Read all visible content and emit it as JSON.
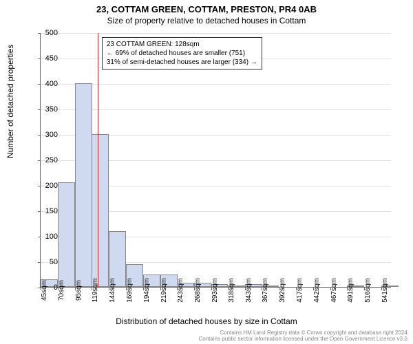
{
  "title": "23, COTTAM GREEN, COTTAM, PRESTON, PR4 0AB",
  "subtitle": "Size of property relative to detached houses in Cottam",
  "ylabel": "Number of detached properties",
  "xlabel": "Distribution of detached houses by size in Cottam",
  "chart": {
    "type": "histogram",
    "background_color": "#ffffff",
    "grid_color": "#e0e0e0",
    "axis_color": "#666666",
    "bar_fill": "#cfd9ef",
    "bar_border": "#888888",
    "marker_color": "#d62728",
    "ylim": [
      0,
      500
    ],
    "yticks": [
      0,
      50,
      100,
      150,
      200,
      250,
      300,
      350,
      400,
      450,
      500
    ],
    "xlim": [
      45,
      556
    ],
    "xticks": [
      45,
      70,
      95,
      119,
      144,
      169,
      194,
      219,
      243,
      268,
      293,
      318,
      343,
      367,
      392,
      417,
      442,
      467,
      491,
      516,
      541
    ],
    "xtick_suffix": "sqm",
    "bin_width": 25,
    "bars": [
      {
        "x": 45,
        "count": 15
      },
      {
        "x": 70,
        "count": 205
      },
      {
        "x": 95,
        "count": 400
      },
      {
        "x": 119,
        "count": 300
      },
      {
        "x": 144,
        "count": 110
      },
      {
        "x": 169,
        "count": 45
      },
      {
        "x": 194,
        "count": 25
      },
      {
        "x": 219,
        "count": 25
      },
      {
        "x": 243,
        "count": 8
      },
      {
        "x": 268,
        "count": 8
      },
      {
        "x": 293,
        "count": 6
      },
      {
        "x": 318,
        "count": 3
      },
      {
        "x": 343,
        "count": 5
      },
      {
        "x": 367,
        "count": 3
      },
      {
        "x": 392,
        "count": 0
      },
      {
        "x": 417,
        "count": 0
      },
      {
        "x": 442,
        "count": 0
      },
      {
        "x": 467,
        "count": 0
      },
      {
        "x": 491,
        "count": 2
      },
      {
        "x": 516,
        "count": 0
      },
      {
        "x": 541,
        "count": 2
      }
    ],
    "marker_x": 128,
    "annotation": {
      "line1": "23 COTTAM GREEN: 128sqm",
      "line2": "← 69% of detached houses are smaller (751)",
      "line3": "31% of semi-detached houses are larger (334) →"
    }
  },
  "footer": {
    "line1": "Contains HM Land Registry data © Crown copyright and database right 2024.",
    "line2": "Contains public sector information licensed under the Open Government Licence v3.0."
  }
}
